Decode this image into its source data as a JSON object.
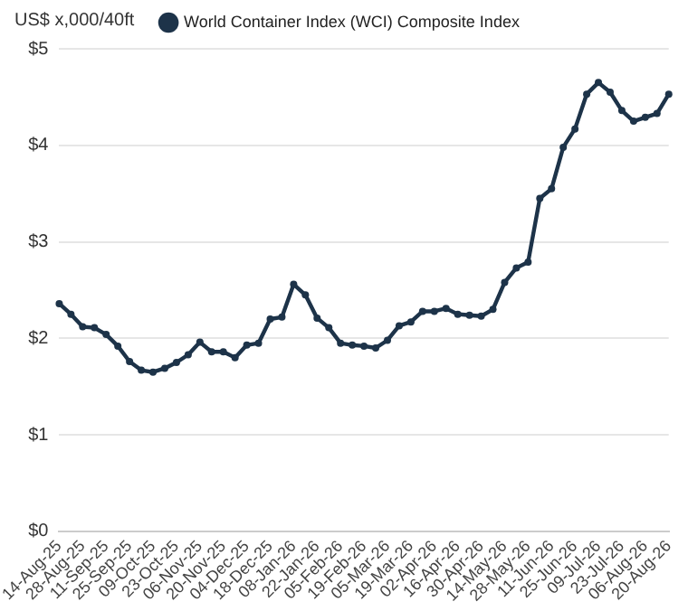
{
  "chart_data": {
    "type": "line",
    "ylabel": "US$ x,000/40ft",
    "categories": [
      "14-Aug-25",
      null,
      "28-Aug-25",
      null,
      "11-Sep-25",
      null,
      "25-Sep-25",
      null,
      "09-Oct-25",
      null,
      "23-Oct-25",
      null,
      "06-Nov-25",
      null,
      "20-Nov-25",
      null,
      "04-Dec-25",
      null,
      "18-Dec-25",
      null,
      "08-Jan-26",
      null,
      "22-Jan-26",
      null,
      "05-Feb-26",
      null,
      "19-Feb-26",
      null,
      "05-Mar-26",
      null,
      "19-Mar-26",
      null,
      "02-Apr-26",
      null,
      "16-Apr-26",
      null,
      "30-Apr-26",
      null,
      "14-May-26",
      null,
      "28-May-26",
      null,
      "11-Jun-26",
      null,
      "25-Jun-26",
      null,
      "09-Jul-26",
      null,
      "23-Jul-26",
      null,
      "06-Aug-26",
      null,
      "20-Aug-26"
    ],
    "series": [
      {
        "name": "World Container Index (WCI) Composite Index",
        "color": "#1d3349",
        "values": [
          2.36,
          2.25,
          2.12,
          2.11,
          2.04,
          1.92,
          1.76,
          1.67,
          1.65,
          1.69,
          1.75,
          1.83,
          1.96,
          1.86,
          1.86,
          1.8,
          1.93,
          1.95,
          2.2,
          2.22,
          2.56,
          2.45,
          2.21,
          2.11,
          1.95,
          1.93,
          1.92,
          1.9,
          1.98,
          2.13,
          2.17,
          2.28,
          2.28,
          2.31,
          2.25,
          2.24,
          2.23,
          2.3,
          2.58,
          2.73,
          2.79,
          3.45,
          3.55,
          3.98,
          4.17,
          4.53,
          4.65,
          4.55,
          4.36,
          4.25,
          4.29,
          4.33,
          4.53
        ]
      }
    ],
    "ylim": [
      0,
      5
    ],
    "yticks": [
      {
        "value": 0,
        "label": "$0"
      },
      {
        "value": 1,
        "label": "$1"
      },
      {
        "value": 2,
        "label": "$2"
      },
      {
        "value": 3,
        "label": "$3"
      },
      {
        "value": 4,
        "label": "$4"
      },
      {
        "value": 5,
        "label": "$5"
      }
    ],
    "grid": "y",
    "legend": "top",
    "marker": "circle",
    "line_style": "solid"
  }
}
